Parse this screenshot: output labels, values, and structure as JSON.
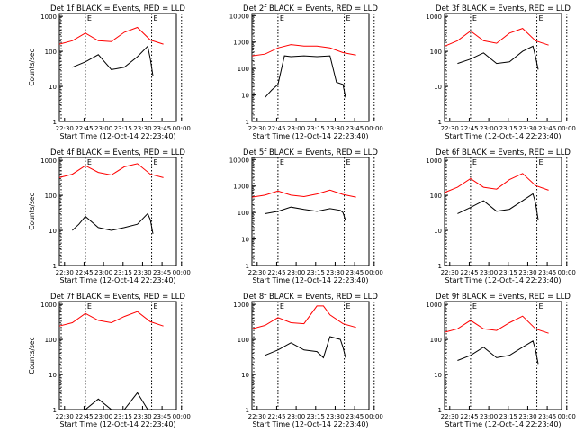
{
  "chart_data": [
    {
      "type": "line",
      "title": "Det 1f BLACK = Events, RED = LLD",
      "xlabel": "Start Time (12-Oct-14 22:23:40)",
      "ylabel": "Counts/sec",
      "yscale": "log",
      "ylim": [
        1,
        1200
      ],
      "x_ticks": [
        "22:30",
        "22:45",
        "23:00",
        "23:15",
        "23:30",
        "23:45",
        "00:00"
      ],
      "y_ticks": [
        "1",
        "10",
        "100",
        "1000"
      ],
      "markers": [
        "22:46",
        "23:37"
      ],
      "marker_label": "E",
      "series": [
        {
          "name": "RED = LLD",
          "color": "#ff0000",
          "x": [
            0,
            10,
            20,
            30,
            40,
            50,
            60,
            70,
            80
          ],
          "y": [
            160,
            200,
            330,
            200,
            190,
            350,
            480,
            210,
            160
          ]
        },
        {
          "name": "BLACK = Events",
          "color": "#000000",
          "x": [
            10,
            20,
            30,
            40,
            50,
            60,
            68,
            70,
            72
          ],
          "y": [
            35,
            50,
            80,
            30,
            35,
            70,
            140,
            60,
            20
          ]
        }
      ]
    },
    {
      "type": "line",
      "title": "Det 2f BLACK = Events, RED = LLD",
      "xlabel": "Start Time (12-Oct-14 22:23:40)",
      "ylabel": "Counts/sec",
      "yscale": "log",
      "ylim": [
        1,
        12000
      ],
      "x_ticks": [
        "22:30",
        "22:45",
        "23:00",
        "23:15",
        "23:30",
        "23:45",
        "00:00"
      ],
      "y_ticks": [
        "1",
        "10",
        "100",
        "1000",
        "10000"
      ],
      "markers": [
        "22:46",
        "23:37"
      ],
      "marker_label": "E",
      "series": [
        {
          "name": "RED = LLD",
          "color": "#ff0000",
          "x": [
            0,
            10,
            20,
            30,
            40,
            50,
            60,
            70,
            80
          ],
          "y": [
            300,
            350,
            600,
            800,
            700,
            700,
            600,
            400,
            320
          ]
        },
        {
          "name": "BLACK = Events",
          "color": "#000000",
          "x": [
            10,
            15,
            20,
            25,
            30,
            40,
            50,
            60,
            65,
            70,
            72
          ],
          "y": [
            8,
            15,
            25,
            300,
            280,
            300,
            280,
            300,
            30,
            25,
            8
          ]
        }
      ]
    },
    {
      "type": "line",
      "title": "Det 3f BLACK = Events, RED = LLD",
      "xlabel": "Start Time (12-Oct-14 22:23:40)",
      "ylabel": "Counts/sec",
      "yscale": "log",
      "ylim": [
        1,
        1200
      ],
      "x_ticks": [
        "22:30",
        "22:45",
        "23:00",
        "23:15",
        "23:30",
        "23:45",
        "00:00"
      ],
      "y_ticks": [
        "1",
        "10",
        "100",
        "1000"
      ],
      "markers": [
        "22:46",
        "23:37"
      ],
      "marker_label": "E",
      "series": [
        {
          "name": "RED = LLD",
          "color": "#ff0000",
          "x": [
            0,
            10,
            20,
            30,
            40,
            50,
            60,
            70,
            80
          ],
          "y": [
            140,
            200,
            380,
            200,
            170,
            330,
            450,
            200,
            150
          ]
        },
        {
          "name": "BLACK = Events",
          "color": "#000000",
          "x": [
            10,
            20,
            30,
            40,
            50,
            60,
            68,
            70,
            72
          ],
          "y": [
            45,
            60,
            90,
            45,
            50,
            100,
            140,
            70,
            30
          ]
        }
      ]
    },
    {
      "type": "line",
      "title": "Det 4f BLACK = Events, RED = LLD",
      "xlabel": "Start Time (12-Oct-14 22:23:40)",
      "ylabel": "Counts/sec",
      "yscale": "log",
      "ylim": [
        1,
        1200
      ],
      "x_ticks": [
        "22:30",
        "22:45",
        "23:00",
        "23:15",
        "23:30",
        "23:45",
        "00:00"
      ],
      "y_ticks": [
        "1",
        "10",
        "100",
        "1000"
      ],
      "markers": [
        "22:46",
        "23:37"
      ],
      "marker_label": "E",
      "series": [
        {
          "name": "RED = LLD",
          "color": "#ff0000",
          "x": [
            0,
            10,
            20,
            30,
            40,
            50,
            60,
            70,
            80
          ],
          "y": [
            320,
            400,
            700,
            450,
            380,
            650,
            800,
            400,
            320
          ]
        },
        {
          "name": "BLACK = Events",
          "color": "#000000",
          "x": [
            10,
            15,
            20,
            30,
            40,
            50,
            60,
            68,
            70,
            72
          ],
          "y": [
            10,
            15,
            25,
            12,
            10,
            12,
            15,
            30,
            20,
            8
          ]
        }
      ]
    },
    {
      "type": "line",
      "title": "Det 5f BLACK = Events, RED = LLD",
      "xlabel": "Start Time (12-Oct-14 22:23:40)",
      "ylabel": "Counts/sec",
      "yscale": "log",
      "ylim": [
        1,
        12000
      ],
      "x_ticks": [
        "22:30",
        "22:45",
        "23:00",
        "23:15",
        "23:30",
        "23:45",
        "00:00"
      ],
      "y_ticks": [
        "1",
        "10",
        "100",
        "1000",
        "10000"
      ],
      "markers": [
        "22:46",
        "23:37"
      ],
      "marker_label": "E",
      "series": [
        {
          "name": "RED = LLD",
          "color": "#ff0000",
          "x": [
            0,
            10,
            20,
            30,
            40,
            50,
            60,
            70,
            80
          ],
          "y": [
            380,
            450,
            650,
            450,
            400,
            500,
            700,
            480,
            380
          ]
        },
        {
          "name": "BLACK = Events",
          "color": "#000000",
          "x": [
            10,
            20,
            30,
            40,
            50,
            60,
            68,
            70,
            72
          ],
          "y": [
            90,
            110,
            160,
            130,
            110,
            140,
            120,
            100,
            50
          ]
        }
      ]
    },
    {
      "type": "line",
      "title": "Det 6f BLACK = Events, RED = LLD",
      "xlabel": "Start Time (12-Oct-14 22:23:40)",
      "ylabel": "Counts/sec",
      "yscale": "log",
      "ylim": [
        1,
        1200
      ],
      "x_ticks": [
        "22:30",
        "22:45",
        "23:00",
        "23:15",
        "23:30",
        "23:45",
        "00:00"
      ],
      "y_ticks": [
        "1",
        "10",
        "100",
        "1000"
      ],
      "markers": [
        "22:46",
        "23:37"
      ],
      "marker_label": "E",
      "series": [
        {
          "name": "RED = LLD",
          "color": "#ff0000",
          "x": [
            0,
            10,
            20,
            30,
            40,
            50,
            60,
            70,
            80
          ],
          "y": [
            120,
            170,
            300,
            170,
            150,
            280,
            420,
            190,
            140
          ]
        },
        {
          "name": "BLACK = Events",
          "color": "#000000",
          "x": [
            10,
            20,
            30,
            40,
            50,
            60,
            68,
            70,
            72
          ],
          "y": [
            30,
            45,
            70,
            35,
            40,
            70,
            110,
            60,
            20
          ]
        }
      ]
    },
    {
      "type": "line",
      "title": "Det 7f BLACK = Events, RED = LLD",
      "xlabel": "Start Time (12-Oct-14 22:23:40)",
      "ylabel": "Counts/sec",
      "yscale": "log",
      "ylim": [
        1,
        1200
      ],
      "x_ticks": [
        "22:30",
        "22:45",
        "23:00",
        "23:15",
        "23:30",
        "23:45",
        "00:00"
      ],
      "y_ticks": [
        "1",
        "10",
        "100",
        "1000"
      ],
      "markers": [
        "22:46",
        "23:37"
      ],
      "marker_label": "E",
      "series": [
        {
          "name": "RED = LLD",
          "color": "#ff0000",
          "x": [
            0,
            10,
            20,
            30,
            40,
            50,
            60,
            70,
            80
          ],
          "y": [
            240,
            300,
            550,
            350,
            300,
            450,
            620,
            320,
            240
          ]
        },
        {
          "name": "BLACK = Events",
          "color": "#000000",
          "x": [
            10,
            20,
            30,
            40,
            50,
            60,
            68
          ],
          "y": [
            1,
            1,
            2,
            1,
            1,
            3,
            1
          ]
        }
      ]
    },
    {
      "type": "line",
      "title": "Det 8f BLACK = Events, RED = LLD",
      "xlabel": "Start Time (12-Oct-14 22:23:40)",
      "ylabel": "Counts/sec",
      "yscale": "log",
      "ylim": [
        1,
        1200
      ],
      "x_ticks": [
        "22:30",
        "22:45",
        "23:00",
        "23:15",
        "23:30",
        "23:45",
        "00:00"
      ],
      "y_ticks": [
        "1",
        "10",
        "100",
        "1000"
      ],
      "markers": [
        "22:46",
        "23:37"
      ],
      "marker_label": "E",
      "series": [
        {
          "name": "RED = LLD",
          "color": "#ff0000",
          "x": [
            0,
            10,
            20,
            30,
            40,
            50,
            55,
            60,
            70,
            80
          ],
          "y": [
            200,
            250,
            420,
            300,
            280,
            900,
            900,
            500,
            280,
            220
          ]
        },
        {
          "name": "BLACK = Events",
          "color": "#000000",
          "x": [
            10,
            20,
            30,
            40,
            50,
            55,
            60,
            68,
            70,
            72
          ],
          "y": [
            35,
            50,
            80,
            50,
            45,
            30,
            120,
            100,
            60,
            30
          ]
        }
      ]
    },
    {
      "type": "line",
      "title": "Det 9f BLACK = Events, RED = LLD",
      "xlabel": "Start Time (12-Oct-14 22:23:40)",
      "ylabel": "Counts/sec",
      "yscale": "log",
      "ylim": [
        1,
        1200
      ],
      "x_ticks": [
        "22:30",
        "22:45",
        "23:00",
        "23:15",
        "23:30",
        "23:45",
        "00:00"
      ],
      "y_ticks": [
        "1",
        "10",
        "100",
        "1000"
      ],
      "markers": [
        "22:46",
        "23:37"
      ],
      "marker_label": "E",
      "series": [
        {
          "name": "RED = LLD",
          "color": "#ff0000",
          "x": [
            0,
            10,
            20,
            30,
            40,
            50,
            60,
            70,
            80
          ],
          "y": [
            160,
            200,
            350,
            200,
            180,
            300,
            460,
            200,
            150
          ]
        },
        {
          "name": "BLACK = Events",
          "color": "#000000",
          "x": [
            10,
            20,
            30,
            40,
            50,
            60,
            68,
            70,
            72
          ],
          "y": [
            25,
            35,
            60,
            30,
            35,
            60,
            90,
            50,
            20
          ]
        }
      ]
    }
  ]
}
